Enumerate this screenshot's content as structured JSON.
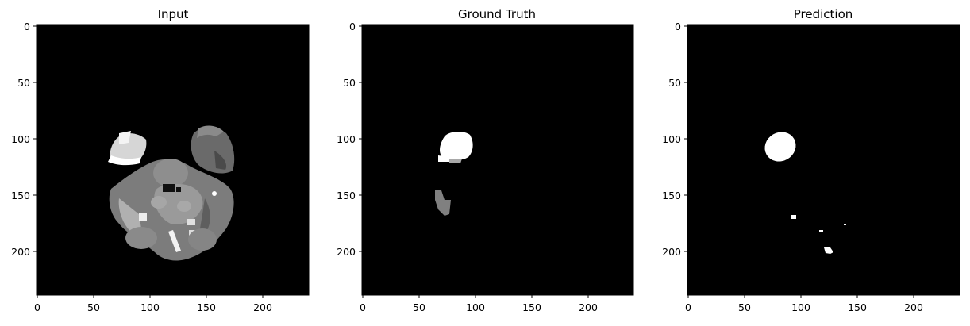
{
  "figure": {
    "background": "#ffffff",
    "panels": [
      {
        "title": "Input",
        "image_kind": "mri-slice",
        "xticks": [
          "0",
          "50",
          "100",
          "150",
          "200"
        ],
        "yticks": [
          "0",
          "50",
          "100",
          "150",
          "200"
        ]
      },
      {
        "title": "Ground Truth",
        "image_kind": "segmentation-mask",
        "xticks": [
          "0",
          "50",
          "100",
          "150",
          "200"
        ],
        "yticks": [
          "0",
          "50",
          "100",
          "150",
          "200"
        ]
      },
      {
        "title": "Prediction",
        "image_kind": "segmentation-mask",
        "xticks": [
          "0",
          "50",
          "100",
          "150",
          "200"
        ],
        "yticks": [
          "0",
          "50",
          "100",
          "150",
          "200"
        ]
      }
    ]
  }
}
